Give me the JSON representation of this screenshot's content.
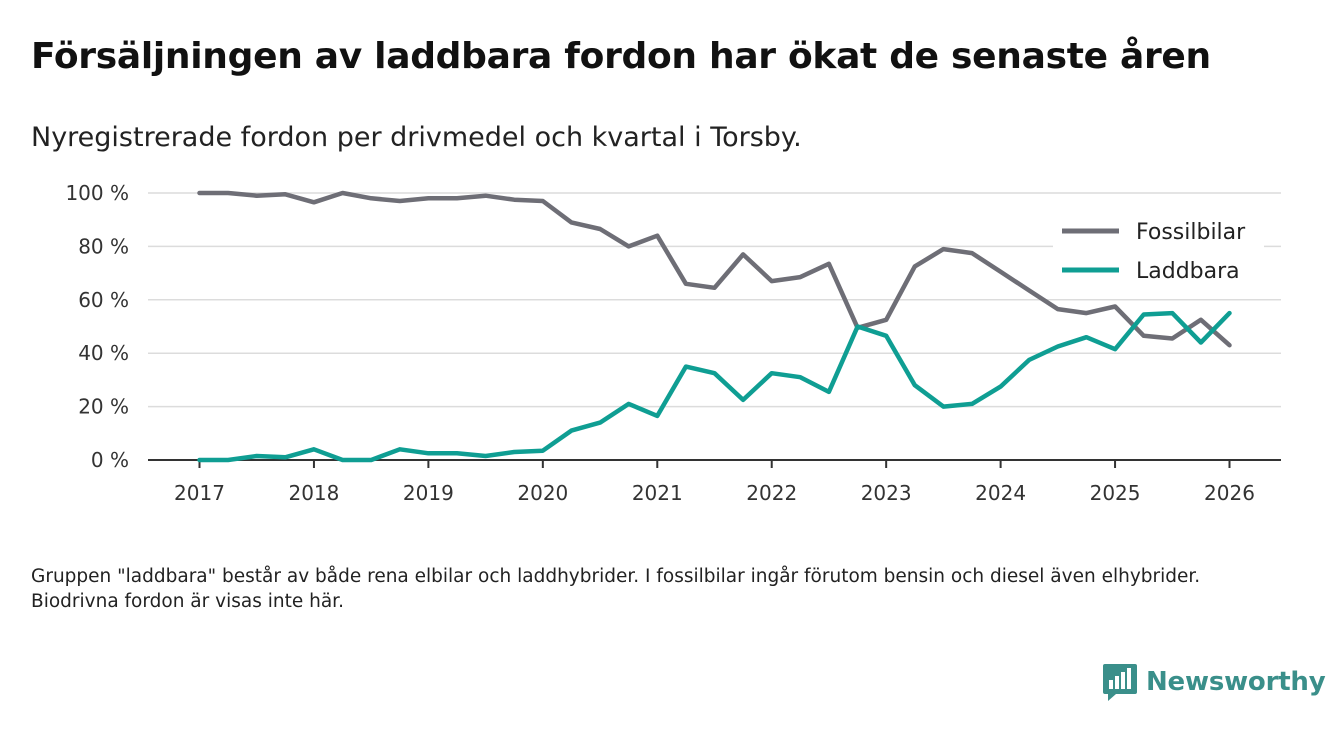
{
  "title": "Försäljningen av laddbara fordon har ökat de senaste åren",
  "subtitle": "Nyregistrerade fordon per drivmedel och kvartal i Torsby.",
  "footnote": "Gruppen \"laddbara\" består av både rena elbilar och laddhybrider. I fossilbilar ingår förutom bensin och diesel även elhybrider. Biodrivna fordon är visas inte här.",
  "brand": {
    "name": "Newsworthy",
    "color": "#3a8f8a"
  },
  "chart_data": {
    "type": "line",
    "x_start": 2017.0,
    "x_step": 0.25,
    "xlim": [
      2016.55,
      2026.45
    ],
    "ylim": [
      0,
      100
    ],
    "x_ticks": [
      2017,
      2018,
      2019,
      2020,
      2021,
      2022,
      2023,
      2024,
      2025,
      2026
    ],
    "y_ticks": [
      0,
      20,
      40,
      60,
      80,
      100
    ],
    "y_tick_labels": [
      "0 %",
      "20 %",
      "40 %",
      "60 %",
      "80 %",
      "100 %"
    ],
    "grid": true,
    "legend_position": "top-right",
    "series": [
      {
        "name": "Fossilbilar",
        "color": "#6e6e76",
        "values": [
          100,
          100,
          99,
          99.5,
          96.5,
          100,
          98,
          97,
          98,
          98,
          99,
          97.5,
          97,
          89,
          86.5,
          80,
          84,
          66,
          64.5,
          77,
          67,
          68.5,
          73.5,
          49.5,
          52.5,
          72.5,
          79,
          77.5,
          70.5,
          63.5,
          56.5,
          55,
          57.5,
          46.5,
          45.5,
          52.5,
          43
        ]
      },
      {
        "name": "Laddbara",
        "color": "#0f9e93",
        "values": [
          0,
          0,
          1.5,
          1,
          4,
          0,
          0,
          4,
          2.5,
          2.5,
          1.5,
          3,
          3.5,
          11,
          14,
          21,
          16.5,
          35,
          32.5,
          22.5,
          32.5,
          31,
          25.5,
          50,
          46.5,
          28,
          20,
          21,
          27.5,
          37.5,
          42.5,
          46,
          41.5,
          54.5,
          55,
          44,
          55
        ]
      }
    ]
  }
}
